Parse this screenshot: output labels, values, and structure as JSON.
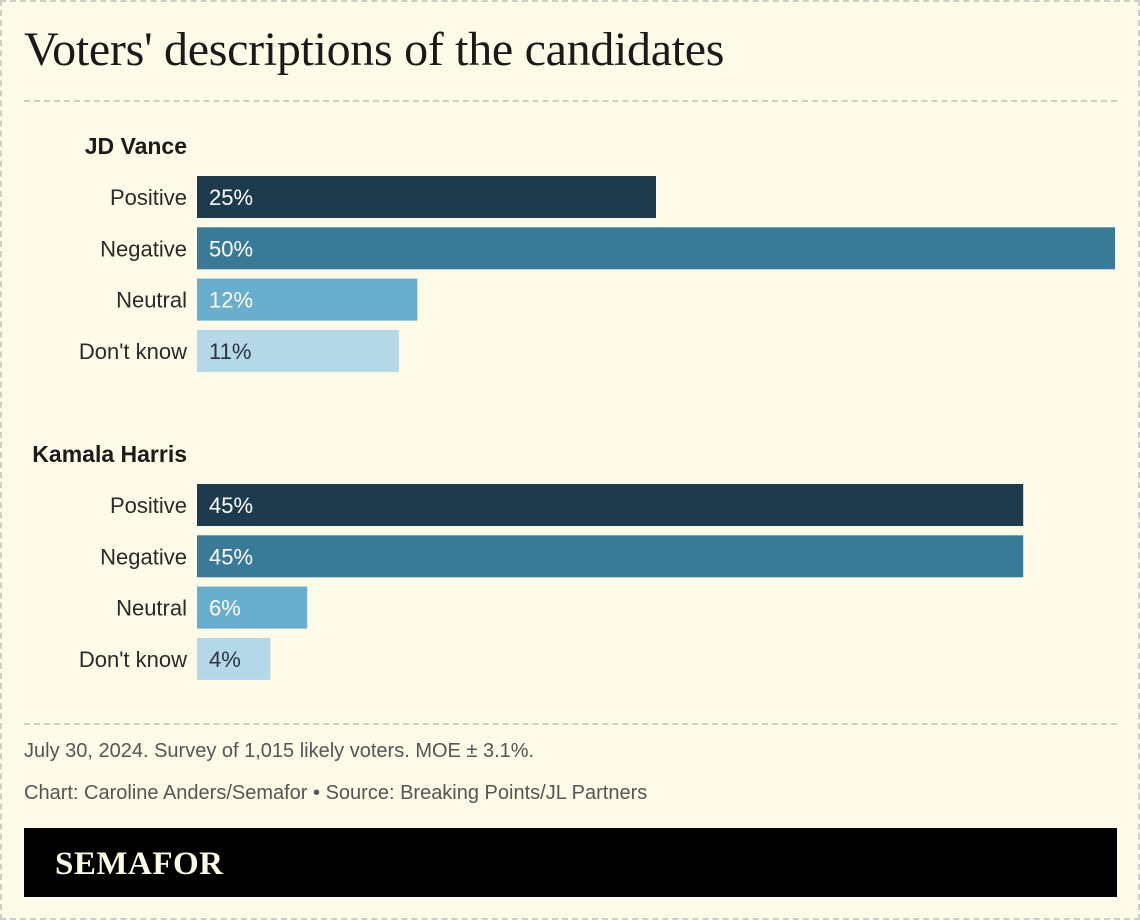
{
  "title": "Voters' descriptions of the candidates",
  "colors": {
    "Positive": "#1d3b4c",
    "Negative": "#397b97",
    "Neutral": "#6aaecd",
    "Don't know": "#b5d8e9",
    "background": "#fdfae7"
  },
  "chart_data": {
    "type": "bar",
    "orientation": "horizontal",
    "categories": [
      "Positive",
      "Negative",
      "Neutral",
      "Don't know"
    ],
    "groups": [
      {
        "name": "JD Vance",
        "values": [
          25,
          50,
          12,
          11
        ]
      },
      {
        "name": "Kamala Harris",
        "values": [
          45,
          45,
          6,
          4
        ]
      }
    ],
    "value_suffix": "%",
    "xlim": [
      0,
      50
    ],
    "grid": false,
    "legend": "none"
  },
  "footer": {
    "note": "July 30, 2024. Survey of 1,015 likely voters. MOE ± 3.1%.",
    "credit": "Chart: Caroline Anders/Semafor • Source: Breaking Points/JL Partners"
  },
  "brand": "SEMAFOR"
}
